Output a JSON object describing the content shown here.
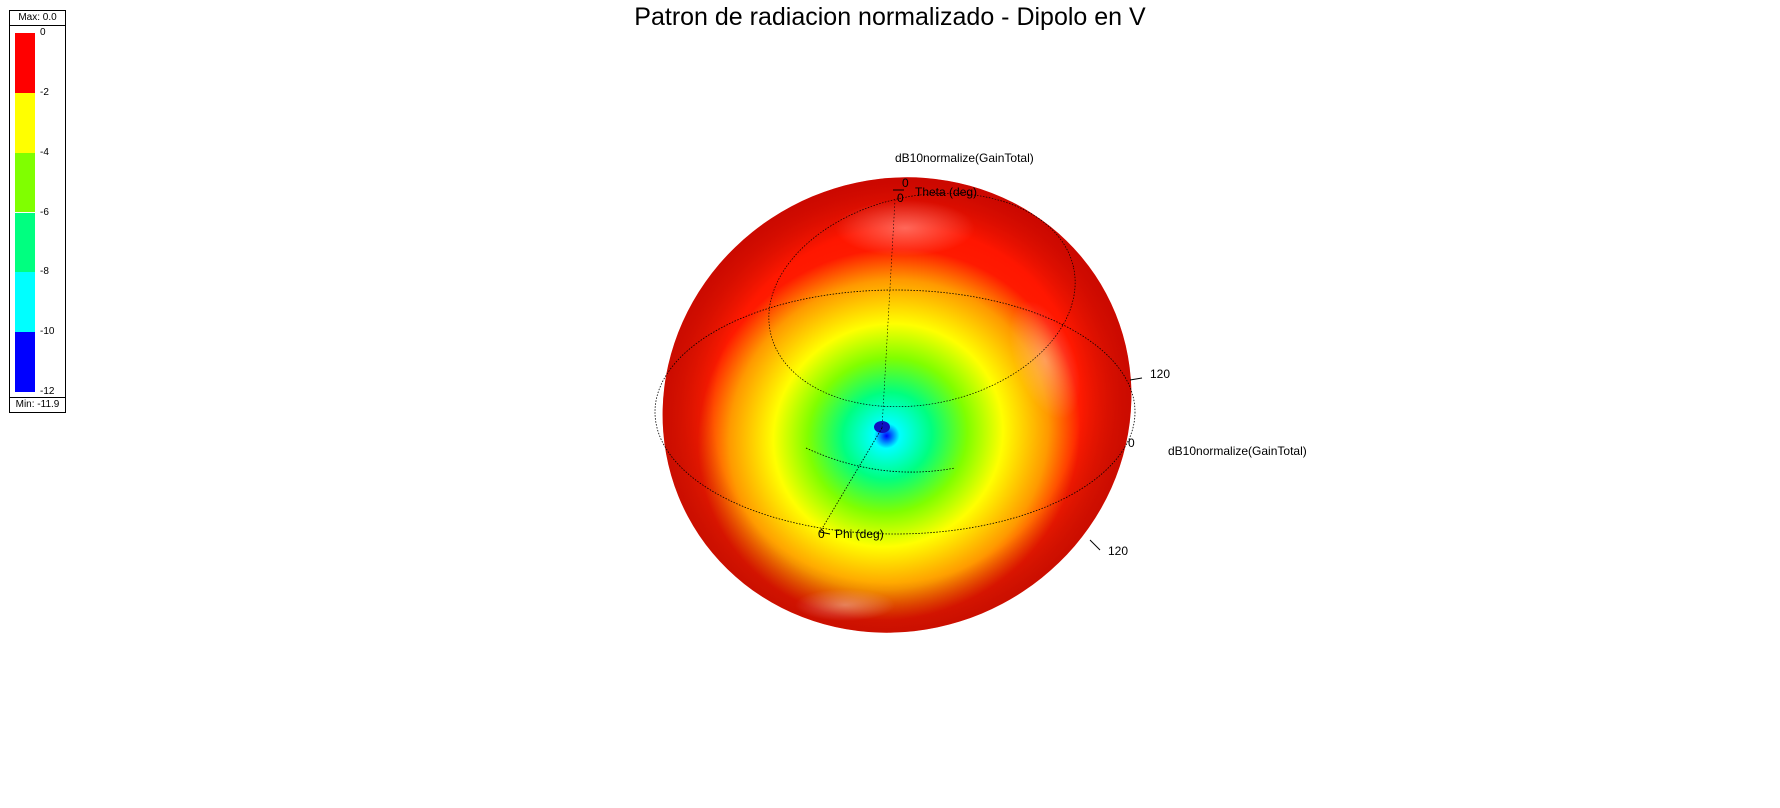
{
  "chart_data": {
    "type": "heatmap",
    "title": "Patron de radiacion normalizado - Dipolo en V",
    "quantity_label": "dB10normalize(GainTotal)",
    "colorbar": {
      "max_label": "Max: 0.0",
      "min_label": "Min: -11.9",
      "ticks": [
        "0",
        "-2",
        "-4",
        "-6",
        "-8",
        "-10",
        "-12"
      ],
      "bands": [
        {
          "from": 0,
          "to": -2,
          "color": "#ff0000"
        },
        {
          "from": -2,
          "to": -4,
          "color": "#ffff00"
        },
        {
          "from": -4,
          "to": -6,
          "color": "#80ff00"
        },
        {
          "from": -6,
          "to": -8,
          "color": "#00ff80"
        },
        {
          "from": -8,
          "to": -10,
          "color": "#00ffff"
        },
        {
          "from": -10,
          "to": -12,
          "color": "#0000ff"
        }
      ]
    },
    "axes": {
      "theta": {
        "label": "Theta (deg)",
        "tick": "0"
      },
      "phi": {
        "label": "Phi (deg)",
        "tick": "0"
      },
      "ring_ticks": [
        "120",
        "0",
        "120"
      ]
    },
    "data_range": {
      "max": 0.0,
      "min": -11.9
    }
  }
}
